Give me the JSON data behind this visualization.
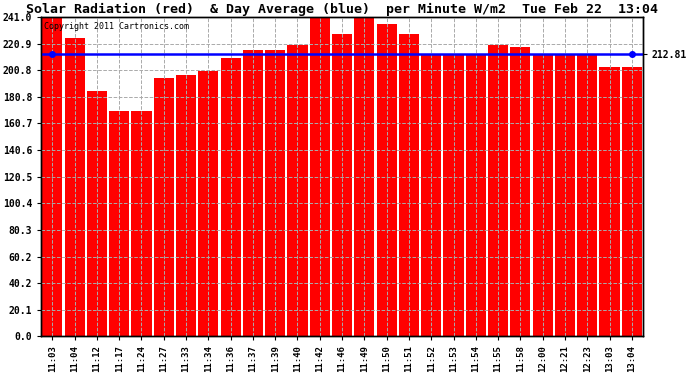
{
  "title": "Solar Radiation (red)  & Day Average (blue)  per Minute W/m2  Tue Feb 22  13:04",
  "copyright_text": "Copyright 2011 Cartronics.com",
  "bar_color": "#ff0000",
  "line_color": "#0000ff",
  "background_color": "#ffffff",
  "plot_bg_color": "#ffffff",
  "grid_color": "#aaaaaa",
  "text_color": "#000000",
  "ytick_labels": [
    "0.0",
    "20.1",
    "40.2",
    "60.2",
    "80.3",
    "100.4",
    "120.5",
    "140.6",
    "160.7",
    "180.8",
    "200.8",
    "220.9",
    "241.0"
  ],
  "ytick_values": [
    0.0,
    20.1,
    40.2,
    60.2,
    80.3,
    100.4,
    120.5,
    140.6,
    160.7,
    180.8,
    200.8,
    220.9,
    241.0
  ],
  "ymin": 0.0,
  "ymax": 241.0,
  "day_average": 212.81,
  "right_label": "212.81",
  "x_labels": [
    "11:03",
    "11:04",
    "11:12",
    "11:17",
    "11:24",
    "11:27",
    "11:33",
    "11:34",
    "11:36",
    "11:37",
    "11:39",
    "11:40",
    "11:42",
    "11:46",
    "11:49",
    "11:50",
    "11:51",
    "11:52",
    "11:53",
    "11:54",
    "11:55",
    "11:58",
    "12:00",
    "12:21",
    "12:23",
    "13:03",
    "13:04"
  ],
  "bar_values": [
    241.0,
    225.0,
    185.0,
    170.0,
    170.0,
    195.0,
    197.0,
    200.0,
    210.0,
    216.0,
    216.0,
    220.0,
    241.0,
    228.0,
    241.0,
    236.0,
    228.0,
    212.0,
    212.0,
    212.0,
    220.0,
    218.0,
    212.0,
    212.0,
    212.0,
    203.0,
    203.0
  ]
}
